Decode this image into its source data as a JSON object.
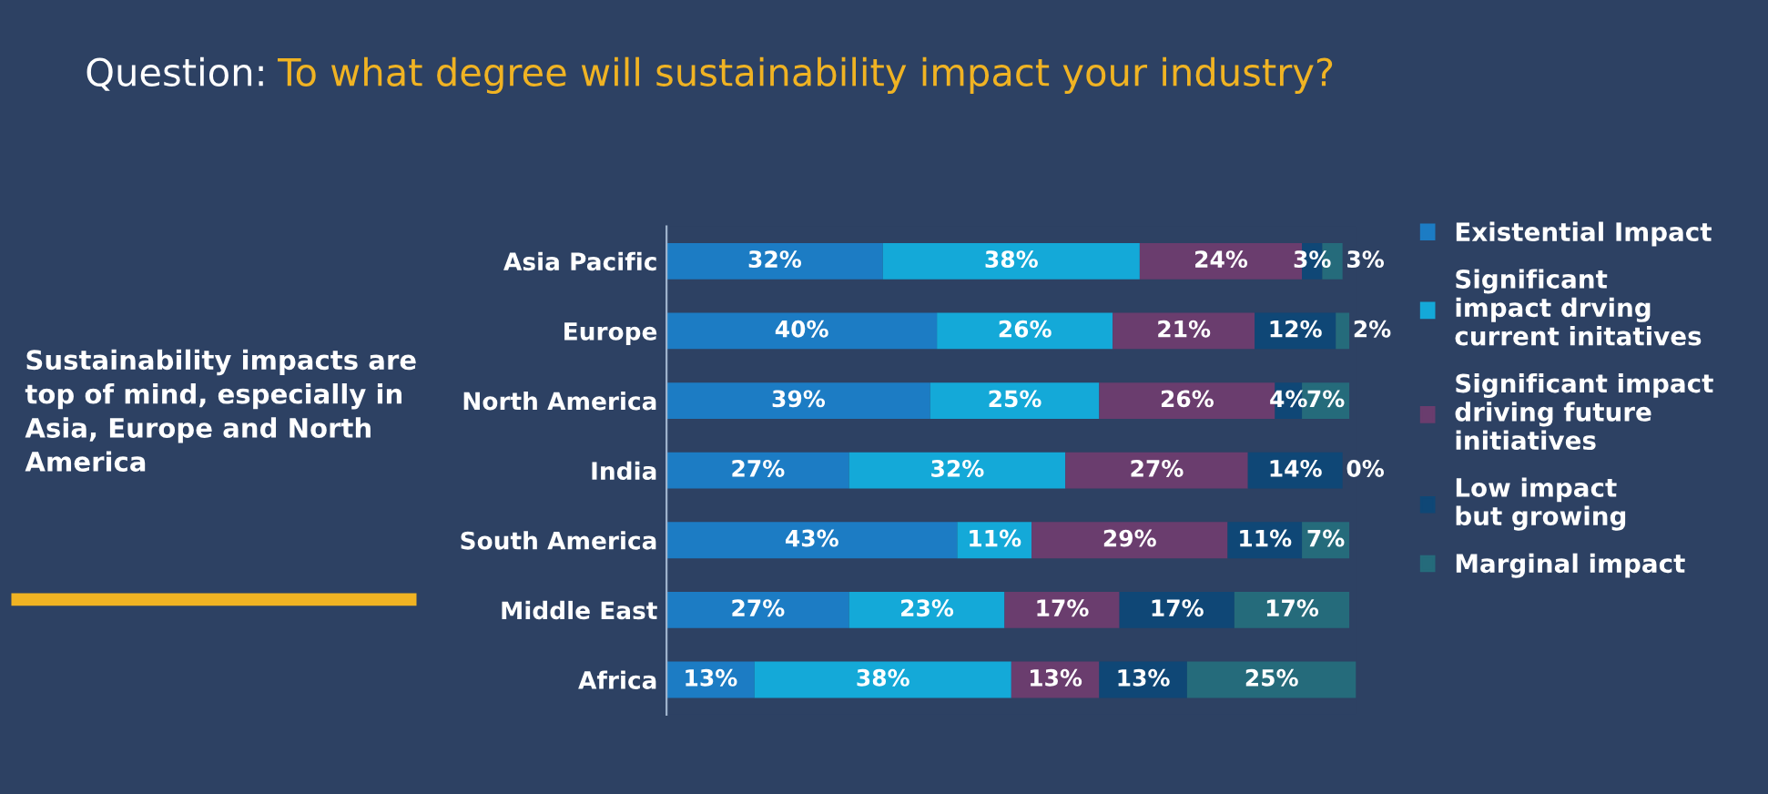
{
  "chart_data": {
    "type": "bar",
    "orientation": "horizontal",
    "stacked": true,
    "legend": "right",
    "grid": false,
    "title": "Question:",
    "subtitle": "To what degree will sustainability impact your industry?",
    "annotations": [
      "Sustainability impacts are top of mind, especially in Asia, Europe and North America"
    ],
    "categories": [
      "Asia Pacific",
      "Europe",
      "North America",
      "India",
      "South America",
      "Middle East",
      "Africa"
    ],
    "series": [
      {
        "name": "Existential Impact",
        "color": "#1c7cc4",
        "values": [
          32,
          40,
          39,
          27,
          43,
          27,
          13
        ],
        "value_labels": [
          "32%",
          "40%",
          "39%",
          "27%",
          "43%",
          "27%",
          "13%"
        ]
      },
      {
        "name": "Significant\nimpact drving\ncurrent initatives",
        "color": "#14a9d8",
        "values": [
          38,
          26,
          25,
          32,
          11,
          23,
          38
        ],
        "value_labels": [
          "38%",
          "26%",
          "25%",
          "32%",
          "11%",
          "23%",
          "38%"
        ]
      },
      {
        "name": "Significant impact\ndriving future\ninitiatives",
        "color": "#6a3d6e",
        "values": [
          24,
          21,
          26,
          27,
          29,
          17,
          13
        ],
        "value_labels": [
          "24%",
          "21%",
          "26%",
          "27%",
          "29%",
          "17%",
          "13%"
        ]
      },
      {
        "name": "Low impact\nbut growing",
        "color": "#0f4776",
        "values": [
          3,
          12,
          4,
          14,
          11,
          17,
          13
        ],
        "value_labels": [
          "3%",
          "12%",
          "4%",
          "14%",
          "11%",
          "17%",
          "13%"
        ]
      },
      {
        "name": "Marginal impact",
        "color": "#256b7b",
        "values": [
          3,
          2,
          7,
          0,
          7,
          17,
          25
        ],
        "value_labels": [
          "3%",
          "2%",
          "7%",
          "0%",
          "7%",
          "17%",
          "25%"
        ]
      }
    ]
  }
}
